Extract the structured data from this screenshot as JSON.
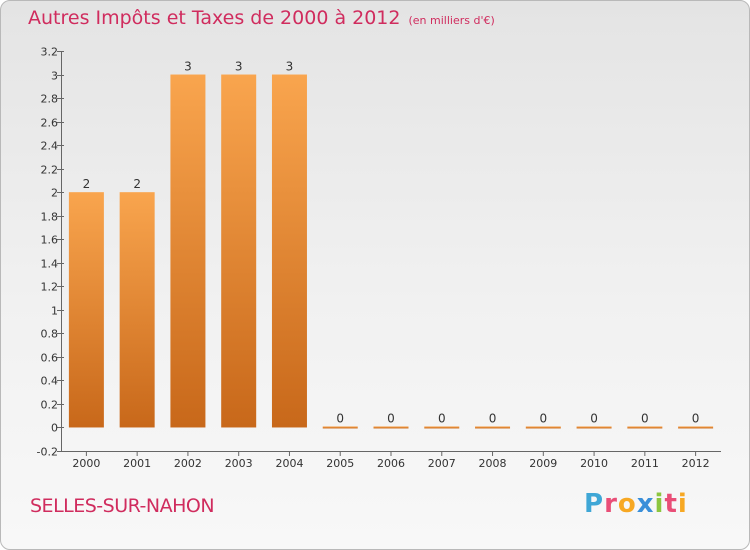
{
  "title": "Autres Impôts et Taxes de 2000 à 2012",
  "subtitle": "(en milliers d'€)",
  "commune": "SELLES-SUR-NAHON",
  "brand": "Proxiti",
  "colors": {
    "title": "#d02c5e",
    "bar_top": "#f9a54e",
    "bar_bottom": "#c8681a",
    "axis": "#666666"
  },
  "chart_data": {
    "type": "bar",
    "title": "Autres Impôts et Taxes de 2000 à 2012",
    "subtitle": "(en milliers d'€)",
    "xlabel": "",
    "ylabel": "",
    "categories": [
      "2000",
      "2001",
      "2002",
      "2003",
      "2004",
      "2005",
      "2006",
      "2007",
      "2008",
      "2009",
      "2010",
      "2011",
      "2012"
    ],
    "values": [
      2,
      2,
      3,
      3,
      3,
      0,
      0,
      0,
      0,
      0,
      0,
      0,
      0
    ],
    "data_labels": [
      "2",
      "2",
      "3",
      "3",
      "3",
      "0",
      "0",
      "0",
      "0",
      "0",
      "0",
      "0",
      "0"
    ],
    "ylim": [
      -0.2,
      3.2
    ],
    "yticks": [
      -0.2,
      0,
      0.2,
      0.4,
      0.6,
      0.8,
      1,
      1.2,
      1.4,
      1.6,
      1.8,
      2,
      2.2,
      2.4,
      2.6,
      2.8,
      3,
      3.2
    ],
    "ytick_labels": [
      "-0.2",
      "0",
      "0.2",
      "0.4",
      "0.6",
      "0.8",
      "1",
      "1.2",
      "1.4",
      "1.6",
      "1.8",
      "2",
      "2.2",
      "2.4",
      "2.6",
      "2.8",
      "3",
      "3.2"
    ],
    "grid": false,
    "legend": "none"
  }
}
